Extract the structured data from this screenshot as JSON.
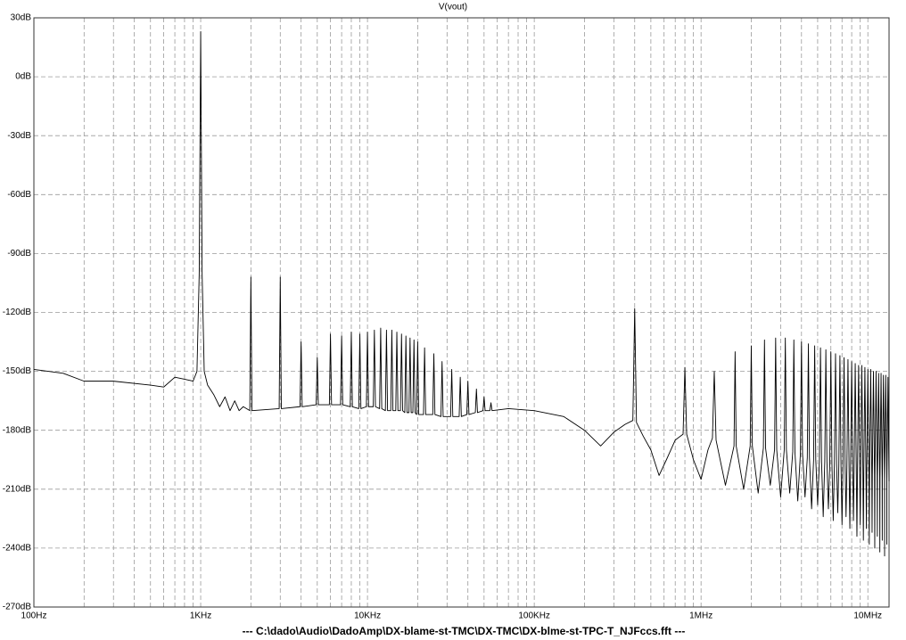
{
  "chart_data": {
    "type": "line",
    "title": "V(vout)",
    "xscale": "log",
    "xlim": [
      100,
      13400000
    ],
    "ylim": [
      -270,
      30
    ],
    "grid": true,
    "color": "#000000",
    "xticks": [
      {
        "value": 100,
        "label": "100Hz"
      },
      {
        "value": 1000,
        "label": "1KHz"
      },
      {
        "value": 10000,
        "label": "10KHz"
      },
      {
        "value": 100000,
        "label": "100KHz"
      },
      {
        "value": 1000000,
        "label": "1MHz"
      },
      {
        "value": 10000000,
        "label": "10MHz"
      }
    ],
    "xminorticks": [
      200,
      300,
      400,
      500,
      600,
      700,
      800,
      900,
      2000,
      3000,
      4000,
      5000,
      6000,
      7000,
      8000,
      9000,
      20000,
      30000,
      40000,
      50000,
      60000,
      70000,
      80000,
      90000,
      200000,
      300000,
      400000,
      500000,
      600000,
      700000,
      800000,
      900000,
      2000000,
      3000000,
      4000000,
      5000000,
      6000000,
      7000000,
      8000000,
      9000000
    ],
    "yticks": [
      {
        "value": 30,
        "label": "30dB"
      },
      {
        "value": 0,
        "label": "0dB"
      },
      {
        "value": -30,
        "label": "-30dB"
      },
      {
        "value": -60,
        "label": "-60dB"
      },
      {
        "value": -90,
        "label": "-90dB"
      },
      {
        "value": -120,
        "label": "-120dB"
      },
      {
        "value": -150,
        "label": "-150dB"
      },
      {
        "value": -180,
        "label": "-180dB"
      },
      {
        "value": -210,
        "label": "-210dB"
      },
      {
        "value": -240,
        "label": "-240dB"
      },
      {
        "value": -270,
        "label": "-270dB"
      }
    ],
    "file_caption": "---   C:\\dado\\Audio\\DadoAmp\\DX-blame-st-TMC\\DX-TMC\\DX-blme-st-TPC-T_NJFccs.fft   ---",
    "x": [
      100,
      150,
      200,
      300,
      500,
      600,
      700,
      800,
      900,
      950,
      980,
      1000,
      1020,
      1050,
      1100,
      1200,
      1300,
      1400,
      1500,
      1600,
      1700,
      1800,
      1970,
      2000,
      2030,
      2955,
      3000,
      3045,
      3940,
      4000,
      4060,
      4925,
      5000,
      5075,
      5910,
      6000,
      6090,
      6895,
      7000,
      7105,
      7880,
      8000,
      8120,
      8865,
      9000,
      9135,
      9850,
      10000,
      10150,
      10835,
      11000,
      11165,
      11820,
      12000,
      12180,
      12805,
      13000,
      13195,
      13790,
      14000,
      14210,
      14775,
      15000,
      15225,
      15760,
      16000,
      16240,
      16745,
      17000,
      17255,
      17730,
      18000,
      18270,
      18715,
      19000,
      19285,
      19700,
      20000,
      20300,
      21670,
      22000,
      22330,
      24625,
      25000,
      25375,
      27580,
      28000,
      28420,
      31520,
      32000,
      32480,
      35460,
      36000,
      36540,
      39400,
      40000,
      40600,
      44325,
      45000,
      45675,
      49250,
      50000,
      50750,
      54175,
      55000,
      55825,
      70000,
      100000,
      150000,
      200000,
      250000,
      300000,
      350000,
      390000,
      400000,
      410000,
      450000,
      500000,
      560000,
      620000,
      700000,
      780000,
      800000,
      820000,
      900000,
      1000000,
      1100000,
      1170000,
      1200000,
      1230000,
      1400000,
      1576000,
      1600000,
      1624000,
      1800000,
      1970000,
      2000000,
      2030000,
      2200000,
      2364000,
      2400000,
      2436000,
      2600000,
      2758000,
      2800000,
      2842000,
      3000000,
      3152000,
      3200000,
      3248000,
      3400000,
      3546000,
      3600000,
      3654000,
      3800000,
      3940000,
      4000000,
      4060000,
      4200000,
      4334000,
      4400000,
      4466000,
      4600000,
      4728000,
      4800000,
      4872000,
      5000000,
      5122000,
      5200000,
      5278000,
      5400000,
      5516000,
      5600000,
      5684000,
      5800000,
      5910000,
      6000000,
      6090000,
      6200000,
      6304000,
      6400000,
      6496000,
      6600000,
      6698000,
      6800000,
      6902000,
      7000000,
      7092000,
      7200000,
      7308000,
      7400000,
      7486000,
      7600000,
      7714000,
      7800000,
      7880000,
      8000000,
      8120000,
      8200000,
      8274000,
      8400000,
      8526000,
      8600000,
      8668000,
      8800000,
      8932000,
      9000000,
      9062000,
      9200000,
      9338000,
      9400000,
      9456000,
      9600000,
      9744000,
      9800000,
      9850000,
      10000000,
      10150000,
      10200000,
      10244000,
      10400000,
      10556000,
      10600000,
      10638000,
      10800000,
      10962000,
      11000000,
      11032000,
      11200000,
      11368000,
      11400000,
      11426000,
      11600000,
      11774000,
      11800000,
      11820000,
      12000000,
      12180000,
      12200000,
      12214000,
      12400000,
      12586000,
      12600000,
      12608000,
      12800000,
      12992000,
      13000000,
      13002000,
      13200000,
      13398000
    ],
    "values": [
      -149,
      -151,
      -155,
      -155,
      -157,
      -158,
      -153,
      -154,
      -155,
      -150,
      -100,
      23,
      -100,
      -150,
      -157,
      -162,
      -168,
      -163,
      -170,
      -165,
      -170,
      -168,
      -170,
      -102,
      -170,
      -169,
      -102,
      -169,
      -168,
      -135,
      -168,
      -167,
      -143,
      -167,
      -167,
      -131,
      -167,
      -167,
      -132,
      -167,
      -168,
      -130,
      -168,
      -169,
      -131,
      -169,
      -168,
      -130,
      -168,
      -168,
      -129,
      -168,
      -169,
      -128,
      -169,
      -170,
      -129,
      -170,
      -170,
      -129,
      -170,
      -170,
      -130,
      -170,
      -170,
      -131,
      -170,
      -171,
      -132,
      -171,
      -171,
      -133,
      -171,
      -171,
      -134,
      -171,
      -172,
      -135,
      -172,
      -172,
      -138,
      -172,
      -172,
      -141,
      -172,
      -173,
      -145,
      -173,
      -173,
      -149,
      -173,
      -173,
      -153,
      -173,
      -172,
      -155,
      -172,
      -171,
      -159,
      -171,
      -170,
      -163,
      -170,
      -170,
      -166,
      -170,
      -169,
      -170,
      -173,
      -180,
      -188,
      -181,
      -177,
      -175,
      -118,
      -176,
      -183,
      -190,
      -203,
      -195,
      -185,
      -182,
      -148,
      -182,
      -195,
      -205,
      -190,
      -184,
      -150,
      -185,
      -208,
      -188,
      -140,
      -188,
      -210,
      -188,
      -137,
      -188,
      -212,
      -189,
      -134,
      -189,
      -208,
      -190,
      -133,
      -190,
      -214,
      -190,
      -133,
      -190,
      -212,
      -191,
      -134,
      -191,
      -216,
      -192,
      -135,
      -192,
      -214,
      -194,
      -136,
      -194,
      -220,
      -195,
      -137,
      -195,
      -218,
      -196,
      -138,
      -196,
      -224,
      -196,
      -139,
      -196,
      -220,
      -197,
      -140,
      -197,
      -226,
      -197,
      -141,
      -197,
      -222,
      -198,
      -142,
      -198,
      -228,
      -198,
      -143,
      -198,
      -224,
      -199,
      -144,
      -199,
      -230,
      -199,
      -145,
      -199,
      -226,
      -200,
      -146,
      -200,
      -234,
      -200,
      -147,
      -200,
      -228,
      -201,
      -147,
      -201,
      -236,
      -201,
      -148,
      -201,
      -230,
      -202,
      -149,
      -202,
      -238,
      -202,
      -149,
      -202,
      -232,
      -203,
      -150,
      -203,
      -240,
      -203,
      -150,
      -203,
      -234,
      -204,
      -151,
      -204,
      -242,
      -204,
      -151,
      -204,
      -236,
      -205,
      -152,
      -205,
      -244,
      -205,
      -152,
      -205,
      -238,
      -206,
      -153,
      -206
    ]
  }
}
